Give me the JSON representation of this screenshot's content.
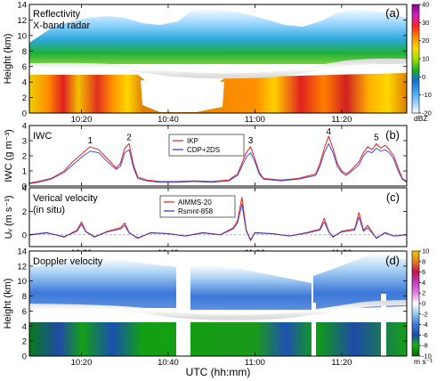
{
  "x_axis": {
    "label": "UTC (hh:mm)",
    "ticks": [
      "10:20",
      "10:40",
      "11:00",
      "11:20"
    ],
    "tick_minutes": [
      620,
      640,
      660,
      680
    ],
    "range_minutes": [
      608,
      695
    ]
  },
  "panels": [
    {
      "id": "a",
      "letter": "(a)",
      "title_lines": [
        "Reflectivity",
        "X-band radar"
      ],
      "ylabel": "Height (km)",
      "ylim": [
        0,
        14
      ],
      "yticks": [
        "0",
        "2",
        "4",
        "6",
        "8",
        "10",
        "12",
        "14"
      ],
      "colorbar": {
        "unit": "dBZ",
        "ticks": [
          "40",
          "30",
          "20",
          "10",
          "0",
          "-10",
          "-20"
        ],
        "range": [
          -20,
          40
        ],
        "colors": [
          "#8b008b",
          "#d020c0",
          "#ff2020",
          "#ff8c00",
          "#ffd700",
          "#a0e000",
          "#20b020",
          "#1070d0",
          "#40a0f0",
          "#90d0ff",
          "#ffffff"
        ]
      }
    },
    {
      "id": "b",
      "letter": "(b)",
      "title": "IWC",
      "ylabel": "IWC (g m⁻³)",
      "ylim": [
        0,
        4
      ],
      "yticks": [
        "0",
        "1",
        "2",
        "3",
        "4"
      ],
      "legend": [
        "IKP",
        "CDP+2DS"
      ],
      "peak_labels": [
        "1",
        "2",
        "3",
        "4",
        "5"
      ]
    },
    {
      "id": "c",
      "letter": "(c)",
      "title_lines": [
        "Verical velocity",
        "(in situ)"
      ],
      "ylabel": "Uᵥ (m s⁻¹)",
      "ylim": [
        -1,
        4
      ],
      "yticks": [
        "0",
        "2",
        "4"
      ],
      "legend": [
        "AIMMS-20",
        "Rsmnt-858"
      ]
    },
    {
      "id": "d",
      "letter": "(d)",
      "title": "Doppler velocity",
      "ylabel": "Height (km)",
      "ylim": [
        0,
        14
      ],
      "yticks": [
        "0",
        "2",
        "4",
        "6",
        "8",
        "10",
        "12",
        "14"
      ],
      "colorbar": {
        "unit": "m s⁻¹",
        "ticks": [
          "10",
          "8",
          "6",
          "4",
          "2",
          "0",
          "-2",
          "-4",
          "-6",
          "-8",
          "-10"
        ],
        "range": [
          -10,
          10
        ],
        "colors": [
          "#f0c800",
          "#e08020",
          "#c01050",
          "#c040c0",
          "#e080e0",
          "#ffffff",
          "#90c8f0",
          "#3c78d8",
          "#1e4aa8",
          "#14b414",
          "#0a5a0a"
        ]
      }
    }
  ],
  "chart_data": [
    {
      "type": "heatmap",
      "panel": "a",
      "title": "Reflectivity X-band radar",
      "ylabel": "Height (km)",
      "xlabel": "UTC (hh:mm)",
      "ylim": [
        0,
        14
      ],
      "melting_layer_km": [
        [
          608,
          6.6
        ],
        [
          625,
          6.7
        ],
        [
          640,
          6.0
        ],
        [
          660,
          5.8
        ],
        [
          672,
          6.5
        ],
        [
          685,
          7.6
        ],
        [
          695,
          7.5
        ]
      ],
      "colorbar_range_dBZ": [
        -20,
        40
      ],
      "colorbar_label": "dBZ"
    },
    {
      "type": "line",
      "panel": "b",
      "title": "IWC",
      "ylabel": "IWC (g m⁻³)",
      "ylim": [
        0,
        4
      ],
      "series": [
        {
          "name": "IKP",
          "color": "#e02020",
          "x": [
            608,
            610,
            613,
            616,
            618,
            620,
            622,
            624,
            626,
            628,
            629,
            630,
            631,
            632,
            633,
            635,
            638,
            642,
            646,
            650,
            654,
            656,
            657,
            658,
            659,
            660,
            661,
            662,
            666,
            670,
            674,
            675,
            676,
            677,
            678,
            679,
            680,
            681,
            682,
            684,
            685,
            686,
            687,
            688,
            689,
            690,
            691,
            692,
            693,
            694,
            695
          ],
          "y": [
            0.2,
            0.3,
            0.5,
            1.0,
            1.6,
            2.1,
            2.6,
            2.4,
            1.8,
            1.2,
            1.5,
            2.5,
            2.8,
            1.4,
            0.6,
            0.4,
            0.3,
            0.3,
            0.35,
            0.3,
            0.4,
            0.8,
            1.5,
            2.2,
            2.6,
            1.8,
            0.9,
            0.5,
            0.4,
            0.5,
            0.8,
            1.5,
            2.5,
            3.3,
            2.5,
            1.5,
            1.0,
            0.8,
            1.0,
            1.6,
            2.2,
            2.6,
            2.4,
            2.8,
            2.5,
            2.7,
            2.4,
            2.0,
            1.2,
            0.5,
            0.3
          ]
        },
        {
          "name": "CDP+2DS",
          "color": "#3030c0",
          "x": [
            608,
            610,
            613,
            616,
            618,
            620,
            622,
            624,
            626,
            628,
            629,
            630,
            631,
            632,
            633,
            635,
            638,
            642,
            646,
            650,
            654,
            656,
            657,
            658,
            659,
            660,
            661,
            662,
            666,
            670,
            674,
            675,
            676,
            677,
            678,
            679,
            680,
            681,
            682,
            684,
            685,
            686,
            687,
            688,
            689,
            690,
            691,
            692,
            693,
            694,
            695
          ],
          "y": [
            0.15,
            0.25,
            0.45,
            0.9,
            1.4,
            1.9,
            2.3,
            2.2,
            1.6,
            1.1,
            1.3,
            2.2,
            2.4,
            1.2,
            0.5,
            0.35,
            0.25,
            0.25,
            0.3,
            0.25,
            0.35,
            0.7,
            1.3,
            1.9,
            2.2,
            1.6,
            0.8,
            0.45,
            0.35,
            0.45,
            0.7,
            1.3,
            2.2,
            2.8,
            2.2,
            1.3,
            0.9,
            0.7,
            0.9,
            1.4,
            2.0,
            2.3,
            2.2,
            2.5,
            2.3,
            2.4,
            2.2,
            1.8,
            1.0,
            0.45,
            0.25
          ]
        }
      ],
      "peaks": [
        {
          "label": "1",
          "x": 622,
          "y": 2.6
        },
        {
          "label": "2",
          "x": 631,
          "y": 2.8
        },
        {
          "label": "3",
          "x": 659,
          "y": 2.6
        },
        {
          "label": "4",
          "x": 677,
          "y": 3.3
        },
        {
          "label": "5",
          "x": 688,
          "y": 2.8
        }
      ]
    },
    {
      "type": "line",
      "panel": "c",
      "title": "Verical velocity (in situ)",
      "ylabel": "Uᵥ (m s⁻¹)",
      "ylim": [
        -1,
        4
      ],
      "series": [
        {
          "name": "AIMMS-20",
          "color": "#e02020",
          "x": [
            608,
            612,
            616,
            619,
            620,
            621,
            623,
            626,
            629,
            630,
            631,
            633,
            636,
            640,
            644,
            648,
            652,
            655,
            656,
            657,
            658,
            659,
            660,
            664,
            668,
            672,
            675,
            676,
            677,
            678,
            680,
            683,
            684,
            685,
            686,
            688,
            690,
            692,
            695
          ],
          "y": [
            0.0,
            0.2,
            -0.2,
            0.4,
            1.1,
            0.3,
            -0.2,
            0.3,
            0.6,
            1.0,
            0.2,
            -0.3,
            0.2,
            0.1,
            -0.1,
            0.2,
            0.0,
            0.6,
            1.2,
            3.2,
            0.4,
            -0.5,
            0.2,
            0.1,
            -0.1,
            0.2,
            0.5,
            1.4,
            0.3,
            -0.2,
            0.3,
            0.5,
            1.9,
            0.4,
            0.8,
            -0.3,
            0.2,
            -0.1,
            0.0
          ]
        },
        {
          "name": "Rsmnt-858",
          "color": "#3030c0",
          "x": [
            608,
            612,
            616,
            619,
            620,
            621,
            623,
            626,
            629,
            630,
            631,
            633,
            636,
            640,
            644,
            648,
            652,
            655,
            656,
            657,
            658,
            659,
            660,
            664,
            668,
            672,
            675,
            676,
            677,
            678,
            680,
            683,
            684,
            685,
            686,
            688,
            690,
            692,
            695
          ],
          "y": [
            0.0,
            0.15,
            -0.15,
            0.3,
            0.9,
            0.25,
            -0.15,
            0.25,
            0.5,
            0.8,
            0.15,
            -0.25,
            0.15,
            0.1,
            -0.1,
            0.15,
            0.0,
            0.5,
            1.0,
            2.6,
            0.3,
            -0.4,
            0.15,
            0.1,
            -0.1,
            0.15,
            0.4,
            1.1,
            0.25,
            -0.15,
            0.25,
            0.4,
            1.5,
            0.3,
            0.6,
            -0.25,
            0.15,
            -0.1,
            0.0
          ]
        }
      ]
    },
    {
      "type": "heatmap",
      "panel": "d",
      "title": "Doppler velocity",
      "ylabel": "Height (km)",
      "xlabel": "UTC (hh:mm)",
      "ylim": [
        0,
        14
      ],
      "melting_layer_km": [
        [
          608,
          6.6
        ],
        [
          625,
          6.8
        ],
        [
          641,
          5.5
        ],
        [
          660,
          5.4
        ],
        [
          672,
          6.2
        ],
        [
          685,
          7.0
        ],
        [
          695,
          7.2
        ]
      ],
      "colorbar_range_ms": [
        -10,
        10
      ],
      "colorbar_label": "m s⁻¹"
    }
  ]
}
